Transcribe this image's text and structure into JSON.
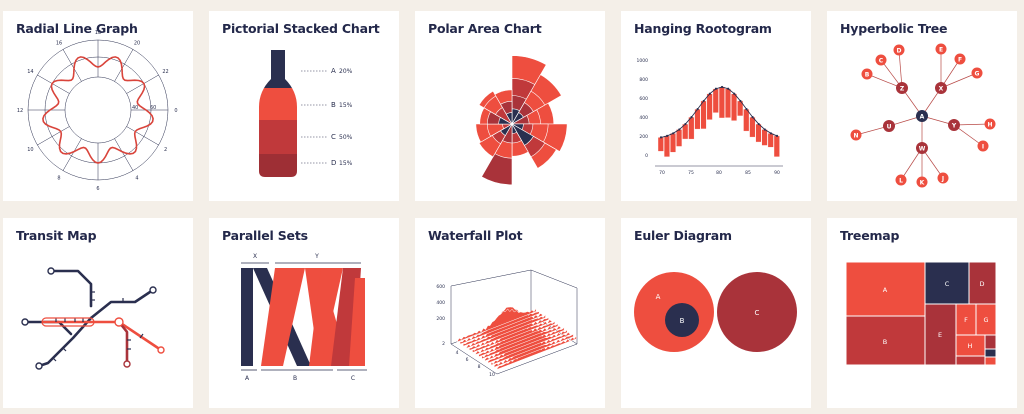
{
  "colors": {
    "background": "#f4efe8",
    "card": "#ffffff",
    "navy": "#2a2f4f",
    "red": "#ee4e3f",
    "dark_red": "#a9333a",
    "mid_red": "#c0393b",
    "title": "#23284a"
  },
  "cards": [
    {
      "title": "Radial Line Graph"
    },
    {
      "title": "Pictorial Stacked Chart"
    },
    {
      "title": "Polar Area Chart"
    },
    {
      "title": "Hanging Rootogram"
    },
    {
      "title": "Hyperbolic Tree"
    },
    {
      "title": "Transit Map"
    },
    {
      "title": "Parallel Sets"
    },
    {
      "title": "Waterfall Plot"
    },
    {
      "title": "Euler Diagram"
    },
    {
      "title": "Treemap"
    }
  ],
  "radial": {
    "hour_labels": [
      "18",
      "20",
      "22",
      "0",
      "2",
      "4",
      "6",
      "8",
      "10",
      "12",
      "14",
      "16"
    ],
    "ring_labels": [
      "40",
      "60"
    ]
  },
  "pictorial": {
    "segments": [
      {
        "letter": "A",
        "value": "20%"
      },
      {
        "letter": "B",
        "value": "15%"
      },
      {
        "letter": "C",
        "value": "50%"
      },
      {
        "letter": "D",
        "value": "15%"
      }
    ]
  },
  "rootogram": {
    "y_ticks": [
      "1000",
      "800",
      "600",
      "400",
      "200",
      "0"
    ],
    "x_ticks": [
      "70",
      "75",
      "80",
      "85",
      "90"
    ]
  },
  "hyperbolic": {
    "nodes": [
      {
        "label": "A",
        "tone": "navy"
      },
      {
        "label": "Z",
        "tone": "dark"
      },
      {
        "label": "X",
        "tone": "dark"
      },
      {
        "label": "Y",
        "tone": "dark"
      },
      {
        "label": "U",
        "tone": "dark"
      },
      {
        "label": "W",
        "tone": "dark"
      },
      {
        "label": "B",
        "tone": "red"
      },
      {
        "label": "C",
        "tone": "red"
      },
      {
        "label": "D",
        "tone": "red"
      },
      {
        "label": "E",
        "tone": "red"
      },
      {
        "label": "F",
        "tone": "red"
      },
      {
        "label": "G",
        "tone": "red"
      },
      {
        "label": "H",
        "tone": "red"
      },
      {
        "label": "I",
        "tone": "red"
      },
      {
        "label": "J",
        "tone": "red"
      },
      {
        "label": "K",
        "tone": "red"
      },
      {
        "label": "L",
        "tone": "red"
      },
      {
        "label": "N",
        "tone": "red"
      }
    ]
  },
  "parallel": {
    "top_labels": [
      "X",
      "Y"
    ],
    "bottom_labels": [
      "A",
      "B",
      "C"
    ]
  },
  "waterfall": {
    "z_ticks": [
      "600",
      "400",
      "200",
      "2"
    ],
    "x_ticks": [
      "4",
      "6",
      "8",
      "10"
    ]
  },
  "euler": {
    "sets": [
      "A",
      "B",
      "C"
    ]
  },
  "treemap": {
    "cells": [
      "A",
      "B",
      "C",
      "D",
      "E",
      "F",
      "G",
      "H"
    ]
  }
}
